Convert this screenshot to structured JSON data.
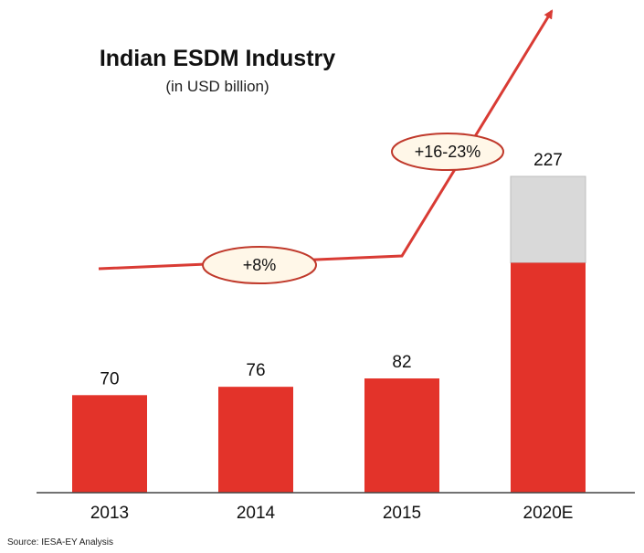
{
  "chart_data": {
    "type": "bar",
    "title": "Indian ESDM Industry",
    "subtitle": "(in USD billion)",
    "categories": [
      "2013",
      "2014",
      "2015",
      "2020E"
    ],
    "values": [
      70,
      76,
      82,
      227
    ],
    "value_labels": [
      "70",
      "76",
      "82",
      "227"
    ],
    "projected_segment": {
      "category": "2020E",
      "solid_value": 165,
      "range_top": 227
    },
    "growth_annotations": [
      {
        "label": "+8%",
        "period": "2013-2015"
      },
      {
        "label": "+16-23%",
        "period": "2015-2020E"
      }
    ],
    "source": "Source: IESA-EY Analysis",
    "ylim": [
      0,
      240
    ],
    "grid": false,
    "legend": "none",
    "colors": {
      "bar": "#e3332a",
      "projected_range": "#d9d9d9",
      "trend_line": "#d93b34",
      "ellipse_stroke": "#c0392b"
    }
  }
}
